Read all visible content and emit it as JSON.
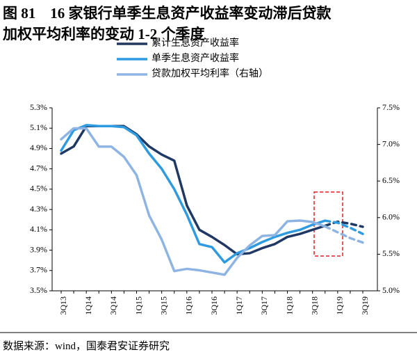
{
  "chart_data": {
    "type": "line",
    "title": [
      "图 81　16 家银行单季生息资产收益率变动滞后贷款",
      "加权平均利率的变动 1-2 个季度"
    ],
    "source": "数据来源：wind，国泰君安证券研究",
    "categories": [
      "3Q13",
      null,
      "1Q14",
      null,
      "3Q14",
      null,
      "1Q15",
      null,
      "3Q15",
      null,
      "1Q16",
      null,
      "3Q16",
      null,
      "1Q17",
      null,
      "3Q17",
      null,
      "1Q18",
      null,
      "3Q18",
      null,
      "1Q19",
      null,
      "3Q19"
    ],
    "series": [
      {
        "name": "累计生息资产收益率",
        "color": "#203864",
        "dash_from": 21,
        "values": [
          4.85,
          4.92,
          5.12,
          5.12,
          5.12,
          5.12,
          5.04,
          4.92,
          4.84,
          4.78,
          4.34,
          4.1,
          4.03,
          3.95,
          3.86,
          3.87,
          3.92,
          3.96,
          4.03,
          4.06,
          4.1,
          4.14,
          4.18,
          4.16,
          4.13
        ]
      },
      {
        "name": "单季生息资产收益率",
        "color": "#2e9be0",
        "dash_from": 21,
        "values": [
          4.88,
          5.08,
          5.13,
          5.12,
          5.12,
          5.11,
          5.03,
          4.85,
          4.7,
          4.5,
          4.25,
          3.96,
          3.93,
          3.78,
          3.87,
          3.92,
          3.98,
          4.03,
          4.07,
          4.1,
          4.15,
          4.19,
          4.17,
          4.12,
          4.06
        ]
      },
      {
        "name": "贷款加权平均利率（右轴）",
        "color": "#8eb4e3",
        "axis": "y2",
        "dash_from": 21,
        "values": [
          7.07,
          7.22,
          7.22,
          6.97,
          6.97,
          6.83,
          6.58,
          6.03,
          5.7,
          5.27,
          5.3,
          5.28,
          5.25,
          5.22,
          5.45,
          5.62,
          5.75,
          5.76,
          5.95,
          5.96,
          5.94,
          5.88,
          5.8,
          5.72,
          5.66
        ]
      }
    ],
    "ylim": [
      3.5,
      5.3
    ],
    "yticks": [
      {
        "value": 3.5,
        "label": "3.5%"
      },
      {
        "value": 3.7,
        "label": "3.7%"
      },
      {
        "value": 3.9,
        "label": "3.9%"
      },
      {
        "value": 4.1,
        "label": "4.1%"
      },
      {
        "value": 4.3,
        "label": "4.3%"
      },
      {
        "value": 4.5,
        "label": "4.5%"
      },
      {
        "value": 4.7,
        "label": "4.7%"
      },
      {
        "value": 4.9,
        "label": "4.9%"
      },
      {
        "value": 5.1,
        "label": "5.1%"
      },
      {
        "value": 5.3,
        "label": "5.3%"
      }
    ],
    "y2lim": [
      5.0,
      7.5
    ],
    "y2ticks": [
      {
        "value": 5.0,
        "label": "5.0%"
      },
      {
        "value": 5.5,
        "label": "5.5%"
      },
      {
        "value": 6.0,
        "label": "6.0%"
      },
      {
        "value": 6.5,
        "label": "6.5%"
      },
      {
        "value": 7.0,
        "label": "7.0%"
      },
      {
        "value": 7.5,
        "label": "7.5%"
      }
    ],
    "grid": false,
    "legend": "top"
  }
}
